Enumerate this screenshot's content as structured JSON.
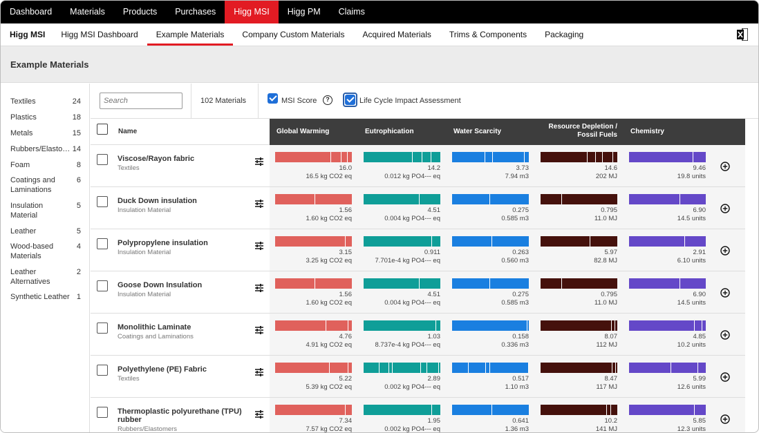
{
  "top_nav": [
    "Dashboard",
    "Materials",
    "Products",
    "Purchases",
    "Higg MSI",
    "Higg PM",
    "Claims"
  ],
  "top_nav_active": 4,
  "sub_nav": [
    "Higg MSI",
    "Higg MSI Dashboard",
    "Example Materials",
    "Company Custom Materials",
    "Acquired Materials",
    "Trims & Components",
    "Packaging"
  ],
  "sub_nav_active": 2,
  "page_title": "Example Materials",
  "categories": [
    {
      "label": "Textiles",
      "count": "24"
    },
    {
      "label": "Plastics",
      "count": "18"
    },
    {
      "label": "Metals",
      "count": "15"
    },
    {
      "label": "Rubbers/Elasto…",
      "count": "14"
    },
    {
      "label": "Foam",
      "count": "8"
    },
    {
      "label": "Coatings and Laminations",
      "count": "6"
    },
    {
      "label": "Insulation Material",
      "count": "5"
    },
    {
      "label": "Leather",
      "count": "5"
    },
    {
      "label": "Wood-based Materials",
      "count": "4"
    },
    {
      "label": "Leather Alternatives",
      "count": "2"
    },
    {
      "label": "Synthetic Leather",
      "count": "1"
    }
  ],
  "toolbar": {
    "search_placeholder": "Search",
    "material_count": "102 Materials",
    "msi_score_label": "MSI Score",
    "msi_score_checked": true,
    "lca_label": "Life Cycle Impact Assessment",
    "lca_checked": true
  },
  "table_headers": {
    "name": "Name",
    "columns": [
      "Global Warming",
      "Eutrophication",
      "Water Scarcity",
      "Resource Depletion /\nFossil Fuels",
      "Chemistry"
    ]
  },
  "column_colors": [
    "#e0615c",
    "#0f9e98",
    "#1a7fe0",
    "#45110c",
    "#6448c8"
  ],
  "materials": [
    {
      "name": "Viscose/Rayon fabric",
      "category": "Textiles",
      "scores": [
        "16.0",
        "14.2",
        "3.73",
        "14.6",
        "9.46"
      ],
      "units": [
        "16.5 kg CO2 eq",
        "0.012 kg PO4--- eq",
        "7.94 m3",
        "202 MJ",
        "19.8 units"
      ]
    },
    {
      "name": "Duck Down insulation",
      "category": "Insulation Material",
      "scores": [
        "1.56",
        "4.51",
        "0.275",
        "0.795",
        "6.90"
      ],
      "units": [
        "1.60 kg CO2 eq",
        "0.004 kg PO4--- eq",
        "0.585 m3",
        "11.0 MJ",
        "14.5 units"
      ]
    },
    {
      "name": "Polypropylene insulation",
      "category": "Insulation Material",
      "scores": [
        "3.15",
        "0.911",
        "0.263",
        "5.97",
        "2.91"
      ],
      "units": [
        "3.25 kg CO2 eq",
        "7.701e-4 kg PO4--- eq",
        "0.560 m3",
        "82.8 MJ",
        "6.10 units"
      ]
    },
    {
      "name": "Goose Down Insulation",
      "category": "Insulation Material",
      "scores": [
        "1.56",
        "4.51",
        "0.275",
        "0.795",
        "6.90"
      ],
      "units": [
        "1.60 kg CO2 eq",
        "0.004 kg PO4--- eq",
        "0.585 m3",
        "11.0 MJ",
        "14.5 units"
      ]
    },
    {
      "name": "Monolithic Laminate",
      "category": "Coatings and Laminations",
      "scores": [
        "4.76",
        "1.03",
        "0.158",
        "8.07",
        "4.85"
      ],
      "units": [
        "4.91 kg CO2 eq",
        "8.737e-4 kg PO4--- eq",
        "0.336 m3",
        "112 MJ",
        "10.2 units"
      ]
    },
    {
      "name": "Polyethylene (PE) Fabric",
      "category": "Textiles",
      "scores": [
        "5.22",
        "2.89",
        "0.517",
        "8.47",
        "5.99"
      ],
      "units": [
        "5.39 kg CO2 eq",
        "0.002 kg PO4--- eq",
        "1.10 m3",
        "117 MJ",
        "12.6 units"
      ]
    },
    {
      "name": "Thermoplastic polyurethane (TPU) rubber",
      "category": "Rubbers/Elastomers",
      "scores": [
        "7.34",
        "1.95",
        "0.641",
        "10.2",
        "5.85"
      ],
      "units": [
        "7.57 kg CO2 eq",
        "0.002 kg PO4--- eq",
        "1.36 m3",
        "141 MJ",
        "12.3 units"
      ]
    }
  ]
}
